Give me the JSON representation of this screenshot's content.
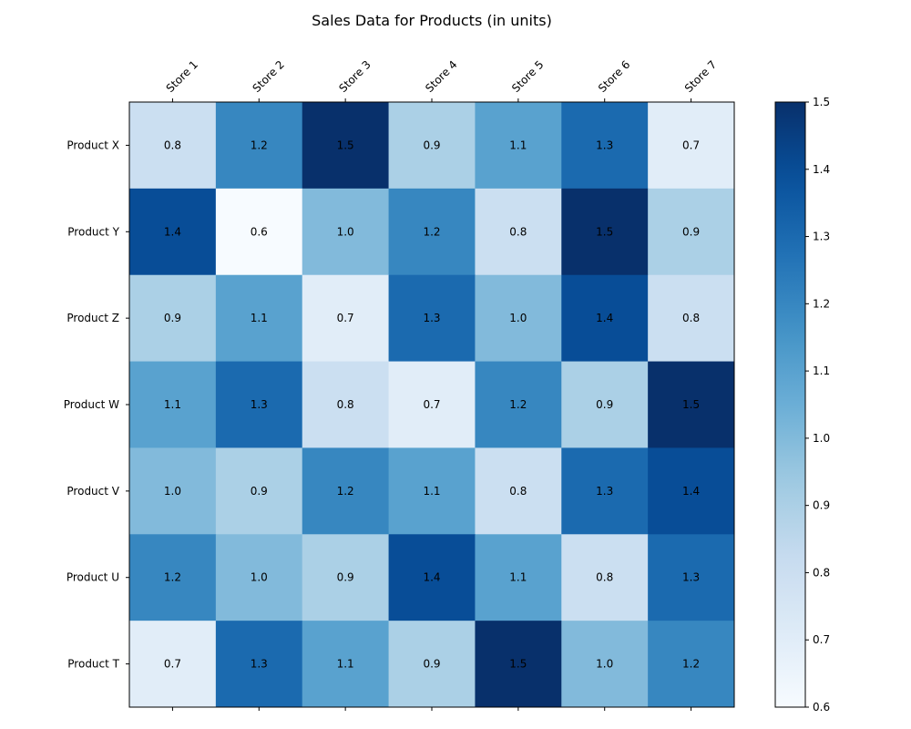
{
  "chart_data": {
    "type": "heatmap",
    "title": "Sales Data for Products (in units)",
    "x_categories": [
      "Store 1",
      "Store 2",
      "Store 3",
      "Store 4",
      "Store 5",
      "Store 6",
      "Store 7"
    ],
    "y_categories": [
      "Product X",
      "Product Y",
      "Product Z",
      "Product W",
      "Product V",
      "Product U",
      "Product T"
    ],
    "values": [
      [
        0.8,
        1.2,
        1.5,
        0.9,
        1.1,
        1.3,
        0.7
      ],
      [
        1.4,
        0.6,
        1.0,
        1.2,
        0.8,
        1.5,
        0.9
      ],
      [
        0.9,
        1.1,
        0.7,
        1.3,
        1.0,
        1.4,
        0.8
      ],
      [
        1.1,
        1.3,
        0.8,
        0.7,
        1.2,
        0.9,
        1.5
      ],
      [
        1.0,
        0.9,
        1.2,
        1.1,
        0.8,
        1.3,
        1.4
      ],
      [
        1.2,
        1.0,
        0.9,
        1.4,
        1.1,
        0.8,
        1.3
      ],
      [
        0.7,
        1.3,
        1.1,
        0.9,
        1.5,
        1.0,
        1.2
      ]
    ],
    "colormap": "Blues",
    "color_range": [
      0.6,
      1.5
    ],
    "colorbar_ticks": [
      "0.6",
      "0.7",
      "0.8",
      "0.9",
      "1.0",
      "1.1",
      "1.2",
      "1.3",
      "1.4",
      "1.5"
    ],
    "x_tick_position": "top",
    "grid": false
  }
}
